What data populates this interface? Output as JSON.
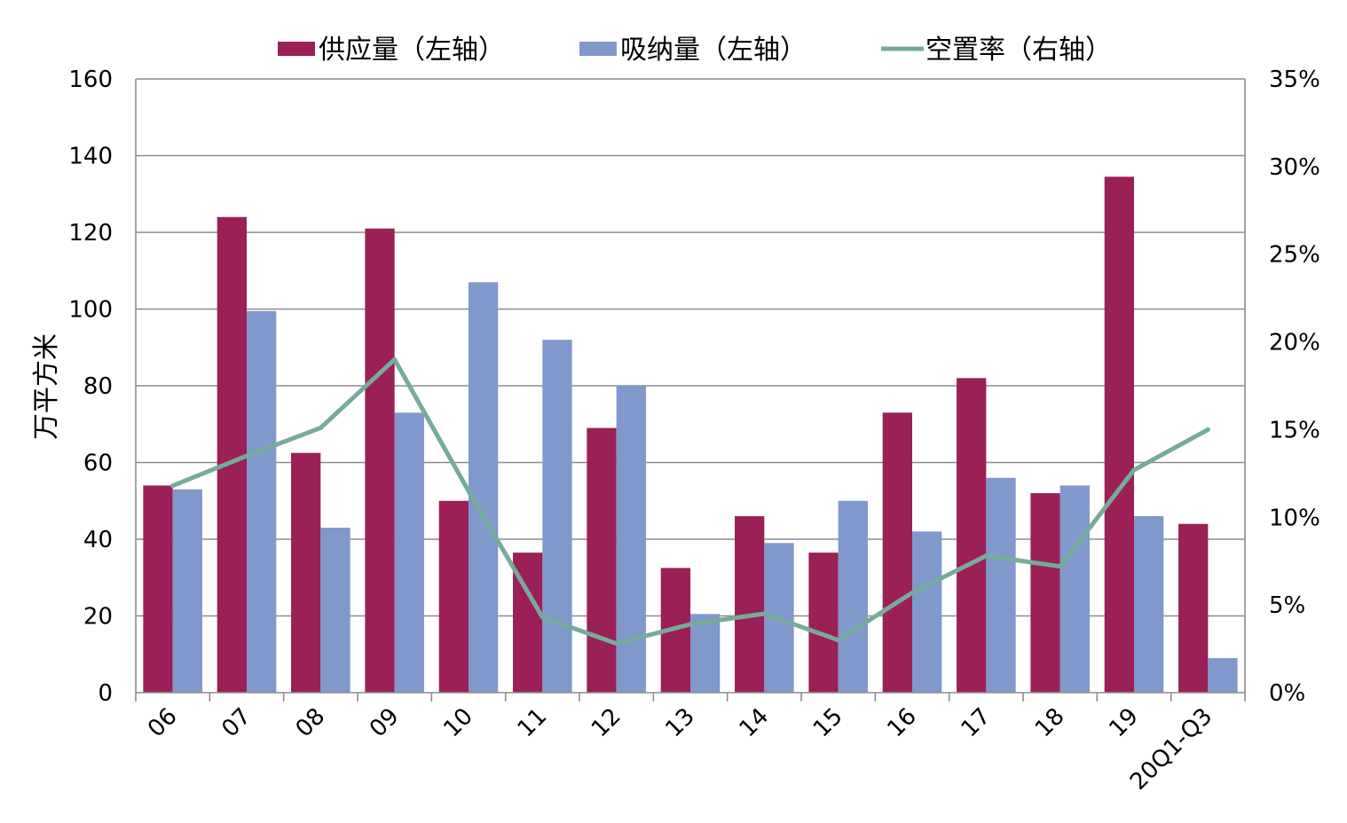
{
  "chart_data": {
    "type": "bar",
    "ylabel": "万平方米",
    "categories": [
      "06",
      "07",
      "08",
      "09",
      "10",
      "11",
      "12",
      "13",
      "14",
      "15",
      "16",
      "17",
      "18",
      "19",
      "20Q1-Q3"
    ],
    "ylim": [
      0,
      160
    ],
    "yticks": [
      0,
      20,
      40,
      60,
      80,
      100,
      120,
      140,
      160
    ],
    "y2lim": [
      0,
      35
    ],
    "y2ticks": [
      "0%",
      "5%",
      "10%",
      "15%",
      "20%",
      "25%",
      "30%",
      "35%"
    ],
    "y2tick_values": [
      0,
      5,
      10,
      15,
      20,
      25,
      30,
      35
    ],
    "grid": true,
    "legend_position": "top",
    "series": [
      {
        "name": "供应量（左轴）",
        "kind": "bar",
        "axis": "left",
        "color": "#9b2057",
        "values": [
          54,
          124,
          62.5,
          121,
          50,
          36.5,
          69,
          32.5,
          46,
          36.5,
          73,
          82,
          52,
          134.5,
          44
        ]
      },
      {
        "name": "吸纳量（左轴）",
        "kind": "bar",
        "axis": "left",
        "color": "#8098cb",
        "values": [
          53,
          99.5,
          43,
          73,
          107,
          92,
          80,
          20.5,
          39,
          50,
          42,
          56,
          54,
          46,
          9
        ]
      },
      {
        "name": "空置率（右轴）",
        "kind": "line",
        "axis": "right",
        "color": "#76ab9c",
        "values": [
          11.8,
          13.5,
          15.1,
          19,
          11.5,
          4.3,
          2.8,
          3.9,
          4.5,
          3,
          5.7,
          7.8,
          7.2,
          12.7,
          15
        ]
      }
    ]
  }
}
